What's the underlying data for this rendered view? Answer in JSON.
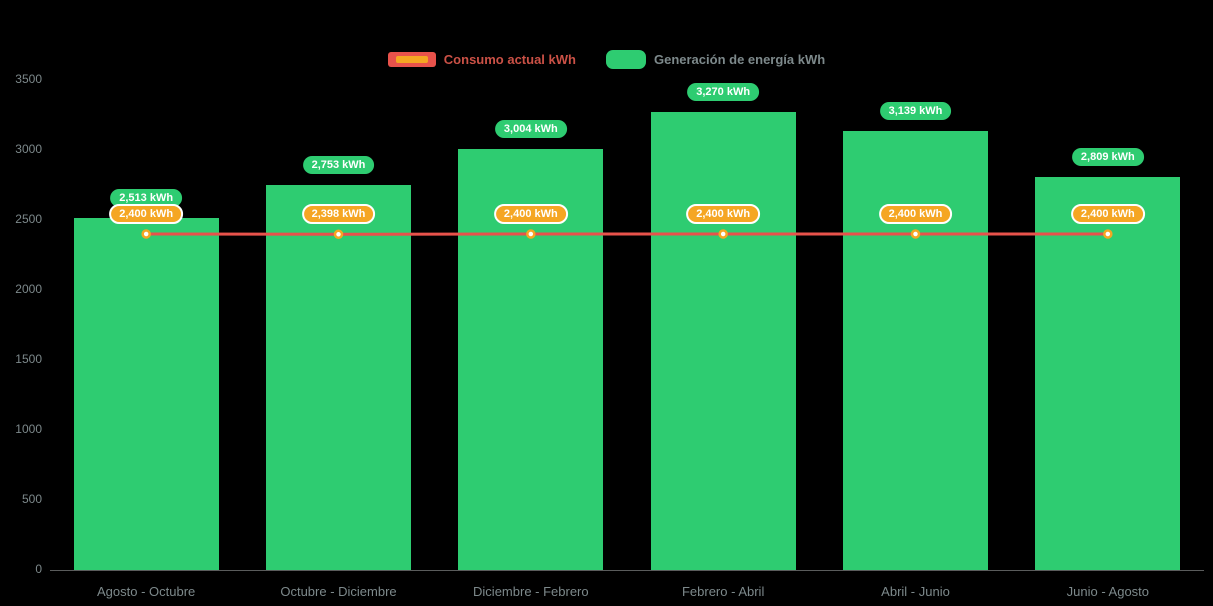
{
  "colors": {
    "background": "#000000",
    "bar_green": "#2ecc71",
    "line_red": "#e8524b",
    "marker_orange": "#f5a623",
    "axis_text": "#7d898b",
    "legend_consumo_text": "#cb5146",
    "legend_generacion_text": "#7d898b",
    "badge_text": "#ffffff"
  },
  "chart_data": {
    "type": "bar",
    "title": "",
    "xlabel": "",
    "ylabel": "",
    "categories": [
      "Agosto - Octubre",
      "Octubre - Diciembre",
      "Diciembre - Febrero",
      "Febrero - Abril",
      "Abril - Junio",
      "Junio - Agosto"
    ],
    "series": [
      {
        "name": "Consumo actual kWh",
        "type": "line",
        "color": "#e8524b",
        "marker_color": "#f5a623",
        "values": [
          2400,
          2398,
          2400,
          2400,
          2400,
          2400
        ],
        "labels": [
          "2,400 kWh",
          "2,398 kWh",
          "2,400 kWh",
          "2,400 kWh",
          "2,400 kWh",
          "2,400 kWh"
        ]
      },
      {
        "name": "Generación de energía kWh",
        "type": "bar",
        "color": "#2ecc71",
        "values": [
          2513,
          2753,
          3004,
          3270,
          3139,
          2809
        ],
        "labels": [
          "2,513 kWh",
          "2,753 kWh",
          "3,004 kWh",
          "3,270 kWh",
          "3,139 kWh",
          "2,809 kWh"
        ]
      }
    ],
    "ylim": [
      0,
      3500
    ],
    "yticks": [
      0,
      500,
      1000,
      1500,
      2000,
      2500,
      3000,
      3500
    ],
    "grid": false,
    "legend_position": "top"
  }
}
